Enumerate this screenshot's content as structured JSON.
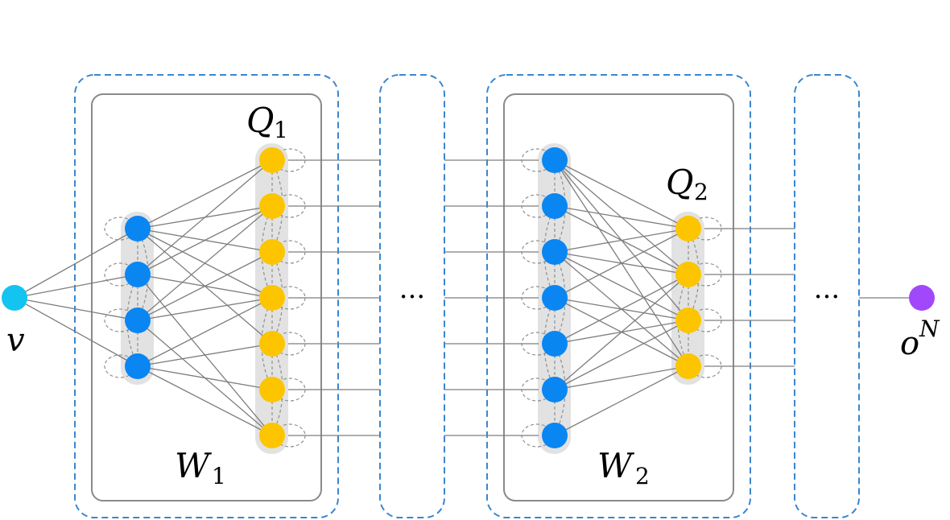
{
  "diagram": {
    "input_label": {
      "base": "v"
    },
    "output_label": {
      "base": "o",
      "sup": "N"
    },
    "block1": {
      "weight_label": {
        "base": "W",
        "sub": "1"
      },
      "layer_label": {
        "base": "Q",
        "sub": "1"
      }
    },
    "block2": {
      "weight_label": {
        "base": "W",
        "sub": "2"
      },
      "layer_label": {
        "base": "Q",
        "sub": "2"
      }
    },
    "ellipsis1": "···",
    "ellipsis2": "···",
    "colors": {
      "input_node": "#12c4ef",
      "output_node": "#a149fa",
      "blue_node": "#0a86f2",
      "yellow_node": "#fcc500",
      "dashed_box": "#3a86cf",
      "solid_box": "#8a8a8a",
      "edge": "#7d7d7d",
      "column_bg": "#e2e2e2"
    }
  }
}
